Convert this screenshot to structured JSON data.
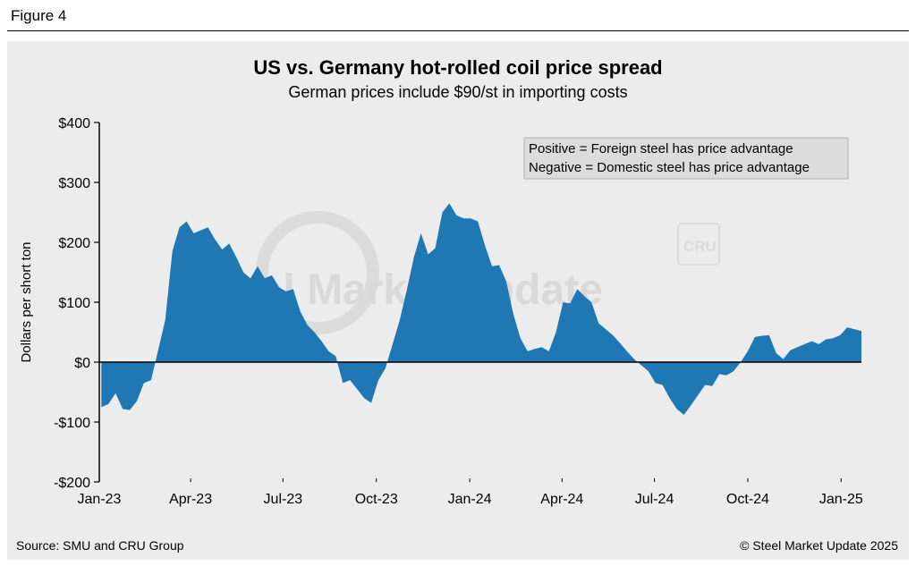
{
  "figure_label": "Figure 4",
  "source": "Source: SMU and CRU Group",
  "copyright": "© Steel Market Update 2025",
  "watermark": {
    "text": "Steel Market Update",
    "badge": "CRU"
  },
  "colors": {
    "fill": "#1f77b4",
    "panel": "#ececec"
  },
  "chart_data": {
    "type": "area",
    "title": "US vs. Germany hot-rolled coil price spread",
    "subtitle": "German prices include $90/st in importing costs",
    "ylabel": "Dollars per short ton",
    "xlabel": "",
    "ylim": [
      -200,
      400
    ],
    "y_ticks": [
      -200,
      -100,
      0,
      100,
      200,
      300,
      400
    ],
    "y_tick_labels": [
      "-$200",
      "-$100",
      "$0",
      "$100",
      "$200",
      "$300",
      "$400"
    ],
    "x_ticks": [
      "2023-01-01",
      "2023-04-01",
      "2023-07-01",
      "2023-10-01",
      "2024-01-01",
      "2024-04-01",
      "2024-07-01",
      "2024-10-01",
      "2025-01-01"
    ],
    "x_tick_labels": [
      "Jan-23",
      "Apr-23",
      "Jul-23",
      "Oct-23",
      "Jan-24",
      "Apr-24",
      "Jul-24",
      "Oct-24",
      "Jan-25"
    ],
    "xlim": [
      "2023-01-01",
      "2025-01-21"
    ],
    "legend_box": [
      "Positive = Foreign steel has price advantage",
      "Negative = Domestic steel has price advantage"
    ],
    "legend_position": "top-right",
    "grid": false,
    "series": [
      {
        "x": [
          "2023-01-03",
          "2023-01-10",
          "2023-01-17",
          "2023-01-24",
          "2023-01-31",
          "2023-02-07",
          "2023-02-14",
          "2023-02-21",
          "2023-02-28",
          "2023-03-07",
          "2023-03-14",
          "2023-03-21",
          "2023-03-28",
          "2023-04-04",
          "2023-04-11",
          "2023-04-18",
          "2023-04-25",
          "2023-05-02",
          "2023-05-09",
          "2023-05-16",
          "2023-05-23",
          "2023-05-30",
          "2023-06-06",
          "2023-06-13",
          "2023-06-20",
          "2023-06-27",
          "2023-07-04",
          "2023-07-11",
          "2023-07-18",
          "2023-07-25",
          "2023-08-01",
          "2023-08-08",
          "2023-08-15",
          "2023-08-22",
          "2023-08-29",
          "2023-09-05",
          "2023-09-12",
          "2023-09-19",
          "2023-09-26",
          "2023-10-03",
          "2023-10-10",
          "2023-10-17",
          "2023-10-24",
          "2023-10-31",
          "2023-11-07",
          "2023-11-14",
          "2023-11-21",
          "2023-11-28",
          "2023-12-05",
          "2023-12-12",
          "2023-12-19",
          "2023-12-26",
          "2024-01-02",
          "2024-01-09",
          "2024-01-16",
          "2024-01-23",
          "2024-01-30",
          "2024-02-06",
          "2024-02-13",
          "2024-02-20",
          "2024-02-27",
          "2024-03-05",
          "2024-03-12",
          "2024-03-19",
          "2024-03-26",
          "2024-04-02",
          "2024-04-09",
          "2024-04-16",
          "2024-04-23",
          "2024-04-30",
          "2024-05-07",
          "2024-05-14",
          "2024-05-21",
          "2024-05-28",
          "2024-06-04",
          "2024-06-11",
          "2024-06-18",
          "2024-06-25",
          "2024-07-02",
          "2024-07-09",
          "2024-07-16",
          "2024-07-23",
          "2024-07-30",
          "2024-08-06",
          "2024-08-13",
          "2024-08-20",
          "2024-08-27",
          "2024-09-03",
          "2024-09-10",
          "2024-09-17",
          "2024-09-24",
          "2024-10-01",
          "2024-10-08",
          "2024-10-15",
          "2024-10-22",
          "2024-10-29",
          "2024-11-05",
          "2024-11-12",
          "2024-11-19",
          "2024-11-26",
          "2024-12-03",
          "2024-12-10",
          "2024-12-17",
          "2024-12-24",
          "2024-12-31",
          "2025-01-07",
          "2025-01-14",
          "2025-01-21"
        ],
        "values": [
          -75,
          -70,
          -52,
          -78,
          -80,
          -65,
          -35,
          -30,
          20,
          70,
          185,
          225,
          235,
          215,
          220,
          225,
          205,
          188,
          198,
          175,
          150,
          140,
          160,
          140,
          145,
          125,
          118,
          122,
          85,
          62,
          50,
          35,
          18,
          10,
          -35,
          -30,
          -45,
          -60,
          -68,
          -30,
          -10,
          30,
          70,
          120,
          175,
          215,
          180,
          190,
          250,
          265,
          245,
          240,
          240,
          235,
          195,
          160,
          162,
          135,
          80,
          40,
          18,
          22,
          25,
          18,
          50,
          100,
          98,
          122,
          110,
          100,
          65,
          55,
          45,
          32,
          18,
          5,
          -5,
          -15,
          -35,
          -38,
          -60,
          -78,
          -88,
          -72,
          -55,
          -38,
          -40,
          -20,
          -22,
          -15,
          0,
          18,
          42,
          44,
          45,
          15,
          5,
          20,
          25,
          30,
          35,
          30,
          38,
          40,
          45,
          58,
          55,
          52
        ]
      }
    ]
  }
}
